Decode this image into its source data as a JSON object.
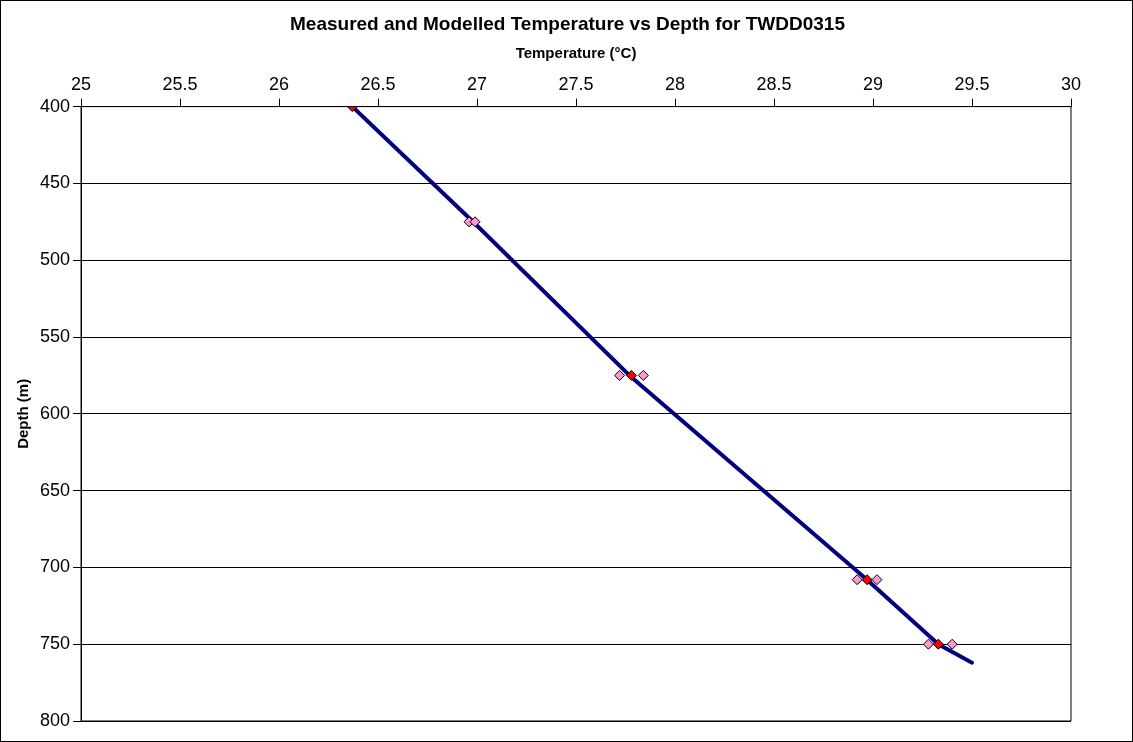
{
  "chart_data": {
    "type": "scatter",
    "title": "Measured and Modelled Temperature vs Depth for TWDD0315",
    "xlabel": "Temperature (°C)",
    "ylabel": "Depth (m)",
    "xlim": [
      25,
      30
    ],
    "xticks": [
      25,
      25.5,
      26,
      26.5,
      27,
      27.5,
      28,
      28.5,
      29,
      29.5,
      30
    ],
    "ylim": [
      800,
      400
    ],
    "yticks": [
      400,
      450,
      500,
      550,
      600,
      650,
      700,
      750,
      800
    ],
    "grid": "y",
    "legend": false,
    "series": [
      {
        "type": "line",
        "color": "#000080",
        "marker": "none",
        "line_style": "solid",
        "x": [
          26.37,
          26.98,
          27.77,
          28.97,
          29.33,
          29.5
        ],
        "values": [
          400,
          475,
          575,
          708,
          750,
          762
        ]
      },
      {
        "type": "scatter",
        "color": "#ff99cc",
        "marker": "diamond",
        "x": [
          26.96,
          26.99,
          27.72,
          27.84,
          28.92,
          29.02,
          29.28,
          29.4
        ],
        "values": [
          475,
          475,
          575,
          575,
          708,
          708,
          750,
          750
        ]
      },
      {
        "type": "scatter",
        "color": "#ff0000",
        "marker": "diamond",
        "x": [
          26.37,
          27.78,
          28.97,
          29.33
        ],
        "values": [
          400,
          575,
          708,
          750
        ]
      }
    ]
  }
}
